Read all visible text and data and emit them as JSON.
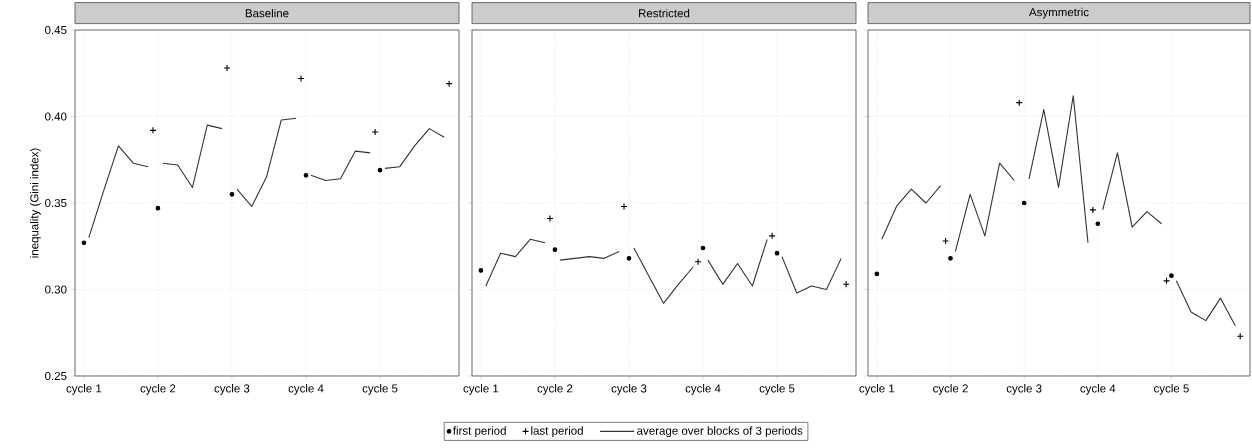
{
  "chart_data": [
    {
      "type": "line",
      "title": "Baseline",
      "ylabel": "inequality (Gini index)",
      "ylim": [
        0.25,
        0.45
      ],
      "categories": [
        "cycle 1",
        null,
        null,
        null,
        null,
        null,
        null,
        null,
        null,
        null,
        null,
        null,
        null,
        null,
        null,
        "cycle 2",
        null,
        null,
        null,
        null,
        null,
        null,
        null,
        null,
        null,
        null,
        null,
        null,
        null,
        null,
        "cycle 3",
        null,
        null,
        null,
        null,
        null,
        null,
        null,
        null,
        null,
        null,
        null,
        null,
        null,
        null,
        "cycle 4",
        null,
        null,
        null,
        null,
        null,
        null,
        null,
        null,
        null,
        null,
        null,
        null,
        null,
        null,
        "cycle 5",
        null,
        null,
        null,
        null,
        null,
        null,
        null,
        null,
        null,
        null,
        null,
        null,
        null,
        null
      ],
      "yticks": [
        0.25,
        {
          "value": 0.3,
          "label": "0.30"
        },
        0.35,
        {
          "value": 0.4,
          "label": "0.40"
        },
        0.45
      ],
      "grid": true,
      "legend": "bottom",
      "series": [
        {
          "name": "first period",
          "type": "scatter",
          "marker": "circle",
          "color": "#000000",
          "values": [
            0.327,
            null,
            null,
            null,
            null,
            null,
            null,
            null,
            null,
            null,
            null,
            null,
            null,
            null,
            null,
            0.347,
            null,
            null,
            null,
            null,
            null,
            null,
            null,
            null,
            null,
            null,
            null,
            null,
            null,
            null,
            0.355,
            null,
            null,
            null,
            null,
            null,
            null,
            null,
            null,
            null,
            null,
            null,
            null,
            null,
            null,
            0.366,
            null,
            null,
            null,
            null,
            null,
            null,
            null,
            null,
            null,
            null,
            null,
            null,
            null,
            null,
            0.369,
            null,
            null,
            null,
            null,
            null,
            null,
            null,
            null,
            null,
            null,
            null,
            null,
            null,
            null
          ]
        },
        {
          "name": "last period",
          "type": "scatter",
          "marker": "cross",
          "color": "#000000",
          "values": [
            null,
            null,
            null,
            null,
            null,
            null,
            null,
            null,
            null,
            null,
            null,
            null,
            null,
            null,
            0.392,
            null,
            null,
            null,
            null,
            null,
            null,
            null,
            null,
            null,
            null,
            null,
            null,
            null,
            null,
            0.428,
            null,
            null,
            null,
            null,
            null,
            null,
            null,
            null,
            null,
            null,
            null,
            null,
            null,
            null,
            0.422,
            null,
            null,
            null,
            null,
            null,
            null,
            null,
            null,
            null,
            null,
            null,
            null,
            null,
            null,
            0.391,
            null,
            null,
            null,
            null,
            null,
            null,
            null,
            null,
            null,
            null,
            null,
            null,
            null,
            null,
            0.419
          ]
        },
        {
          "name": "average over blocks of 3 periods",
          "line_style": "solid",
          "color": "#333333",
          "values": [
            null,
            0.33,
            null,
            null,
            0.357,
            null,
            null,
            0.383,
            null,
            null,
            0.373,
            null,
            null,
            0.371,
            null,
            null,
            null,
            null,
            null,
            null,
            null,
            null,
            null,
            null,
            null,
            null,
            null,
            null,
            null,
            null,
            null,
            null,
            null,
            null,
            null,
            null,
            null,
            null,
            null,
            null,
            null,
            null,
            null,
            null,
            null,
            null,
            null,
            null,
            null,
            null,
            null,
            null,
            null,
            null,
            null,
            null,
            null,
            null,
            null,
            null,
            null,
            null,
            null,
            null,
            null,
            null,
            null,
            null,
            null,
            null,
            null,
            null,
            null,
            null,
            null
          ]
        },
        {
          "line_style": "solid",
          "color": "#333333",
          "values": [
            null,
            null,
            null,
            null,
            null,
            null,
            null,
            null,
            null,
            null,
            null,
            null,
            null,
            null,
            null,
            null,
            0.373,
            null,
            null,
            0.372,
            null,
            null,
            0.359,
            null,
            null,
            0.395,
            null,
            null,
            0.393,
            null,
            null,
            null,
            null,
            null,
            null,
            null,
            null,
            null,
            null,
            null,
            null,
            null,
            null,
            null,
            null,
            null,
            null,
            null,
            null,
            null,
            null,
            null,
            null,
            null,
            null,
            null,
            null,
            null,
            null,
            null,
            null,
            null,
            null,
            null,
            null,
            null,
            null,
            null,
            null,
            null,
            null,
            null,
            null,
            null,
            null
          ]
        },
        {
          "line_style": "solid",
          "color": "#333333",
          "values": [
            null,
            null,
            null,
            null,
            null,
            null,
            null,
            null,
            null,
            null,
            null,
            null,
            null,
            null,
            null,
            null,
            null,
            null,
            null,
            null,
            null,
            null,
            null,
            null,
            null,
            null,
            null,
            null,
            null,
            null,
            null,
            0.358,
            null,
            null,
            0.348,
            null,
            null,
            0.365,
            null,
            null,
            0.398,
            null,
            null,
            0.399,
            null,
            null,
            null,
            null,
            null,
            null,
            null,
            null,
            null,
            null,
            null,
            null,
            null,
            null,
            null,
            null,
            null,
            null,
            null,
            null,
            null,
            null,
            null,
            null,
            null,
            null,
            null,
            null,
            null,
            null,
            null
          ]
        },
        {
          "line_style": "solid",
          "color": "#333333",
          "values": [
            null,
            null,
            null,
            null,
            null,
            null,
            null,
            null,
            null,
            null,
            null,
            null,
            null,
            null,
            null,
            null,
            null,
            null,
            null,
            null,
            null,
            null,
            null,
            null,
            null,
            null,
            null,
            null,
            null,
            null,
            null,
            null,
            null,
            null,
            null,
            null,
            null,
            null,
            null,
            null,
            null,
            null,
            null,
            null,
            null,
            null,
            0.366,
            null,
            null,
            0.363,
            null,
            null,
            0.364,
            null,
            null,
            0.38,
            null,
            null,
            0.379,
            null,
            null,
            null,
            null,
            null,
            null,
            null,
            null,
            null,
            null,
            null,
            null,
            null,
            null,
            null,
            null
          ]
        },
        {
          "line_style": "solid",
          "color": "#333333",
          "values": [
            null,
            null,
            null,
            null,
            null,
            null,
            null,
            null,
            null,
            null,
            null,
            null,
            null,
            null,
            null,
            null,
            null,
            null,
            null,
            null,
            null,
            null,
            null,
            null,
            null,
            null,
            null,
            null,
            null,
            null,
            null,
            null,
            null,
            null,
            null,
            null,
            null,
            null,
            null,
            null,
            null,
            null,
            null,
            null,
            null,
            null,
            null,
            null,
            null,
            null,
            null,
            null,
            null,
            null,
            null,
            null,
            null,
            null,
            null,
            null,
            null,
            0.37,
            null,
            null,
            0.371,
            null,
            null,
            0.383,
            null,
            null,
            0.393,
            null,
            null,
            0.388,
            null
          ]
        }
      ]
    },
    {
      "type": "line",
      "title": "Restricted",
      "ylim": [
        0.25,
        0.45
      ],
      "tick_labels": "x",
      "categories": [
        "cycle 1",
        null,
        null,
        null,
        null,
        null,
        null,
        null,
        null,
        null,
        null,
        null,
        null,
        null,
        null,
        "cycle 2",
        null,
        null,
        null,
        null,
        null,
        null,
        null,
        null,
        null,
        null,
        null,
        null,
        null,
        null,
        "cycle 3",
        null,
        null,
        null,
        null,
        null,
        null,
        null,
        null,
        null,
        null,
        null,
        null,
        null,
        null,
        "cycle 4",
        null,
        null,
        null,
        null,
        null,
        null,
        null,
        null,
        null,
        null,
        null,
        null,
        null,
        null,
        "cycle 5",
        null,
        null,
        null,
        null,
        null,
        null,
        null,
        null,
        null,
        null,
        null,
        null,
        null,
        null
      ],
      "yticks": [
        0.25,
        0.3,
        0.35,
        0.4,
        0.45
      ],
      "grid": true,
      "series": [
        {
          "type": "scatter",
          "marker": "circle",
          "color": "#000000",
          "values": [
            0.311,
            null,
            null,
            null,
            null,
            null,
            null,
            null,
            null,
            null,
            null,
            null,
            null,
            null,
            null,
            0.323,
            null,
            null,
            null,
            null,
            null,
            null,
            null,
            null,
            null,
            null,
            null,
            null,
            null,
            null,
            0.318,
            null,
            null,
            null,
            null,
            null,
            null,
            null,
            null,
            null,
            null,
            null,
            null,
            null,
            null,
            0.324,
            null,
            null,
            null,
            null,
            null,
            null,
            null,
            null,
            null,
            null,
            null,
            null,
            null,
            null,
            0.321,
            null,
            null,
            null,
            null,
            null,
            null,
            null,
            null,
            null,
            null,
            null,
            null,
            null,
            null
          ]
        },
        {
          "type": "scatter",
          "marker": "cross",
          "color": "#000000",
          "values": [
            null,
            null,
            null,
            null,
            null,
            null,
            null,
            null,
            null,
            null,
            null,
            null,
            null,
            null,
            0.341,
            null,
            null,
            null,
            null,
            null,
            null,
            null,
            null,
            null,
            null,
            null,
            null,
            null,
            null,
            0.348,
            null,
            null,
            null,
            null,
            null,
            null,
            null,
            null,
            null,
            null,
            null,
            null,
            null,
            null,
            0.316,
            null,
            null,
            null,
            null,
            null,
            null,
            null,
            null,
            null,
            null,
            null,
            null,
            null,
            null,
            0.331,
            null,
            null,
            null,
            null,
            null,
            null,
            null,
            null,
            null,
            null,
            null,
            null,
            null,
            null,
            0.303
          ]
        },
        {
          "line_style": "solid",
          "color": "#333333",
          "values": [
            null,
            0.302,
            null,
            null,
            0.321,
            null,
            null,
            0.319,
            null,
            null,
            0.329,
            null,
            null,
            0.327,
            null,
            null,
            null,
            null,
            null,
            null,
            null,
            null,
            null,
            null,
            null,
            null,
            null,
            null,
            null,
            null,
            null,
            null,
            null,
            null,
            null,
            null,
            null,
            null,
            null,
            null,
            null,
            null,
            null,
            null,
            null,
            null,
            null,
            null,
            null,
            null,
            null,
            null,
            null,
            null,
            null,
            null,
            null,
            null,
            null,
            null,
            null,
            null,
            null,
            null,
            null,
            null,
            null,
            null,
            null,
            null,
            null,
            null,
            null,
            null,
            null
          ]
        },
        {
          "line_style": "solid",
          "color": "#333333",
          "values": [
            null,
            null,
            null,
            null,
            null,
            null,
            null,
            null,
            null,
            null,
            null,
            null,
            null,
            null,
            null,
            null,
            0.317,
            null,
            null,
            0.318,
            null,
            null,
            0.319,
            null,
            null,
            0.318,
            null,
            null,
            0.322,
            null,
            null,
            null,
            null,
            null,
            null,
            null,
            null,
            null,
            null,
            null,
            null,
            null,
            null,
            null,
            null,
            null,
            null,
            null,
            null,
            null,
            null,
            null,
            null,
            null,
            null,
            null,
            null,
            null,
            null,
            null,
            null,
            null,
            null,
            null,
            null,
            null,
            null,
            null,
            null,
            null,
            null,
            null,
            null,
            null,
            null
          ]
        },
        {
          "line_style": "solid",
          "color": "#333333",
          "values": [
            null,
            null,
            null,
            null,
            null,
            null,
            null,
            null,
            null,
            null,
            null,
            null,
            null,
            null,
            null,
            null,
            null,
            null,
            null,
            null,
            null,
            null,
            null,
            null,
            null,
            null,
            null,
            null,
            null,
            null,
            null,
            0.324,
            null,
            null,
            0.308,
            null,
            null,
            0.292,
            null,
            null,
            0.303,
            null,
            null,
            0.313,
            null,
            null,
            null,
            null,
            null,
            null,
            null,
            null,
            null,
            null,
            null,
            null,
            null,
            null,
            null,
            null,
            null,
            null,
            null,
            null,
            null,
            null,
            null,
            null,
            null,
            null,
            null,
            null,
            null,
            null,
            null
          ]
        },
        {
          "line_style": "solid",
          "color": "#333333",
          "values": [
            null,
            null,
            null,
            null,
            null,
            null,
            null,
            null,
            null,
            null,
            null,
            null,
            null,
            null,
            null,
            null,
            null,
            null,
            null,
            null,
            null,
            null,
            null,
            null,
            null,
            null,
            null,
            null,
            null,
            null,
            null,
            null,
            null,
            null,
            null,
            null,
            null,
            null,
            null,
            null,
            null,
            null,
            null,
            null,
            null,
            null,
            0.317,
            null,
            null,
            0.303,
            null,
            null,
            0.315,
            null,
            null,
            0.302,
            null,
            null,
            0.329,
            null,
            null,
            null,
            null,
            null,
            null,
            null,
            null,
            null,
            null,
            null,
            null,
            null,
            null,
            null,
            null
          ]
        },
        {
          "line_style": "solid",
          "color": "#333333",
          "values": [
            null,
            null,
            null,
            null,
            null,
            null,
            null,
            null,
            null,
            null,
            null,
            null,
            null,
            null,
            null,
            null,
            null,
            null,
            null,
            null,
            null,
            null,
            null,
            null,
            null,
            null,
            null,
            null,
            null,
            null,
            null,
            null,
            null,
            null,
            null,
            null,
            null,
            null,
            null,
            null,
            null,
            null,
            null,
            null,
            null,
            null,
            null,
            null,
            null,
            null,
            null,
            null,
            null,
            null,
            null,
            null,
            null,
            null,
            null,
            null,
            null,
            0.319,
            null,
            null,
            0.298,
            null,
            null,
            0.302,
            null,
            null,
            0.3,
            null,
            null,
            0.318,
            null
          ]
        }
      ]
    },
    {
      "type": "line",
      "title": "Asymmetric",
      "ylim": [
        0.25,
        0.45
      ],
      "tick_labels": "x",
      "categories": [
        "cycle 1",
        null,
        null,
        null,
        null,
        null,
        null,
        null,
        null,
        null,
        null,
        null,
        null,
        null,
        null,
        "cycle 2",
        null,
        null,
        null,
        null,
        null,
        null,
        null,
        null,
        null,
        null,
        null,
        null,
        null,
        null,
        "cycle 3",
        null,
        null,
        null,
        null,
        null,
        null,
        null,
        null,
        null,
        null,
        null,
        null,
        null,
        null,
        "cycle 4",
        null,
        null,
        null,
        null,
        null,
        null,
        null,
        null,
        null,
        null,
        null,
        null,
        null,
        null,
        "cycle 5",
        null,
        null,
        null,
        null,
        null,
        null,
        null,
        null,
        null,
        null,
        null,
        null,
        null,
        null
      ],
      "yticks": [
        0.25,
        0.3,
        0.35,
        0.4,
        0.45
      ],
      "grid": true,
      "series": [
        {
          "type": "scatter",
          "marker": "circle",
          "color": "#000000",
          "values": [
            0.309,
            null,
            null,
            null,
            null,
            null,
            null,
            null,
            null,
            null,
            null,
            null,
            null,
            null,
            null,
            0.318,
            null,
            null,
            null,
            null,
            null,
            null,
            null,
            null,
            null,
            null,
            null,
            null,
            null,
            null,
            0.35,
            null,
            null,
            null,
            null,
            null,
            null,
            null,
            null,
            null,
            null,
            null,
            null,
            null,
            null,
            0.338,
            null,
            null,
            null,
            null,
            null,
            null,
            null,
            null,
            null,
            null,
            null,
            null,
            null,
            null,
            0.308,
            null,
            null,
            null,
            null,
            null,
            null,
            null,
            null,
            null,
            null,
            null,
            null,
            null,
            null
          ]
        },
        {
          "type": "scatter",
          "marker": "cross",
          "color": "#000000",
          "values": [
            null,
            null,
            null,
            null,
            null,
            null,
            null,
            null,
            null,
            null,
            null,
            null,
            null,
            null,
            0.328,
            null,
            null,
            null,
            null,
            null,
            null,
            null,
            null,
            null,
            null,
            null,
            null,
            null,
            null,
            0.408,
            null,
            null,
            null,
            null,
            null,
            null,
            null,
            null,
            null,
            null,
            null,
            null,
            null,
            null,
            0.346,
            null,
            null,
            null,
            null,
            null,
            null,
            null,
            null,
            null,
            null,
            null,
            null,
            null,
            null,
            0.305,
            null,
            null,
            null,
            null,
            null,
            null,
            null,
            null,
            null,
            null,
            null,
            null,
            null,
            null,
            0.273
          ]
        },
        {
          "line_style": "solid",
          "color": "#333333",
          "values": [
            null,
            0.329,
            null,
            null,
            0.348,
            null,
            null,
            0.358,
            null,
            null,
            0.35,
            null,
            null,
            0.36,
            null,
            null,
            null,
            null,
            null,
            null,
            null,
            null,
            null,
            null,
            null,
            null,
            null,
            null,
            null,
            null,
            null,
            null,
            null,
            null,
            null,
            null,
            null,
            null,
            null,
            null,
            null,
            null,
            null,
            null,
            null,
            null,
            null,
            null,
            null,
            null,
            null,
            null,
            null,
            null,
            null,
            null,
            null,
            null,
            null,
            null,
            null,
            null,
            null,
            null,
            null,
            null,
            null,
            null,
            null,
            null,
            null,
            null,
            null,
            null,
            null
          ]
        },
        {
          "line_style": "solid",
          "color": "#333333",
          "values": [
            null,
            null,
            null,
            null,
            null,
            null,
            null,
            null,
            null,
            null,
            null,
            null,
            null,
            null,
            null,
            null,
            0.322,
            null,
            null,
            0.355,
            null,
            null,
            0.331,
            null,
            null,
            0.373,
            null,
            null,
            0.363,
            null,
            null,
            null,
            null,
            null,
            null,
            null,
            null,
            null,
            null,
            null,
            null,
            null,
            null,
            null,
            null,
            null,
            null,
            null,
            null,
            null,
            null,
            null,
            null,
            null,
            null,
            null,
            null,
            null,
            null,
            null,
            null,
            null,
            null,
            null,
            null,
            null,
            null,
            null,
            null,
            null,
            null,
            null,
            null,
            null,
            null
          ]
        },
        {
          "line_style": "solid",
          "color": "#333333",
          "values": [
            null,
            null,
            null,
            null,
            null,
            null,
            null,
            null,
            null,
            null,
            null,
            null,
            null,
            null,
            null,
            null,
            null,
            null,
            null,
            null,
            null,
            null,
            null,
            null,
            null,
            null,
            null,
            null,
            null,
            null,
            null,
            0.364,
            null,
            null,
            0.404,
            null,
            null,
            0.359,
            null,
            null,
            0.412,
            null,
            null,
            0.327,
            null,
            null,
            null,
            null,
            null,
            null,
            null,
            null,
            null,
            null,
            null,
            null,
            null,
            null,
            null,
            null,
            null,
            null,
            null,
            null,
            null,
            null,
            null,
            null,
            null,
            null,
            null,
            null,
            null,
            null,
            null
          ]
        },
        {
          "line_style": "solid",
          "color": "#333333",
          "values": [
            null,
            null,
            null,
            null,
            null,
            null,
            null,
            null,
            null,
            null,
            null,
            null,
            null,
            null,
            null,
            null,
            null,
            null,
            null,
            null,
            null,
            null,
            null,
            null,
            null,
            null,
            null,
            null,
            null,
            null,
            null,
            null,
            null,
            null,
            null,
            null,
            null,
            null,
            null,
            null,
            null,
            null,
            null,
            null,
            null,
            null,
            0.346,
            null,
            null,
            0.379,
            null,
            null,
            0.336,
            null,
            null,
            0.345,
            null,
            null,
            0.338,
            null,
            null,
            null,
            null,
            null,
            null,
            null,
            null,
            null,
            null,
            null,
            null,
            null,
            null,
            null,
            null
          ]
        },
        {
          "line_style": "solid",
          "color": "#333333",
          "values": [
            null,
            null,
            null,
            null,
            null,
            null,
            null,
            null,
            null,
            null,
            null,
            null,
            null,
            null,
            null,
            null,
            null,
            null,
            null,
            null,
            null,
            null,
            null,
            null,
            null,
            null,
            null,
            null,
            null,
            null,
            null,
            null,
            null,
            null,
            null,
            null,
            null,
            null,
            null,
            null,
            null,
            null,
            null,
            null,
            null,
            null,
            null,
            null,
            null,
            null,
            null,
            null,
            null,
            null,
            null,
            null,
            null,
            null,
            null,
            null,
            null,
            0.305,
            null,
            null,
            0.287,
            null,
            null,
            0.282,
            null,
            null,
            0.295,
            null,
            null,
            0.279,
            null
          ]
        }
      ]
    }
  ]
}
